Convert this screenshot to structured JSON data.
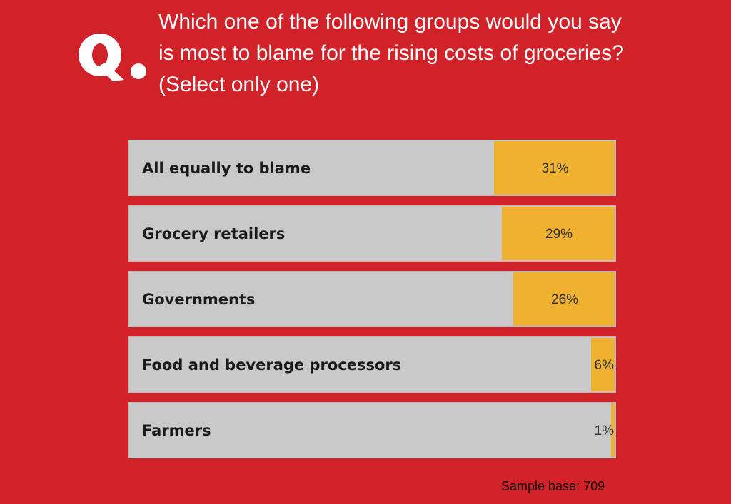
{
  "question": {
    "mark": "Q.",
    "line1": "Which one of the following groups would you say",
    "line2": "is most to blame for the rising costs of groceries?",
    "line3": "(Select only one)"
  },
  "colors": {
    "background": "#d1222a",
    "track": "#c9c9c9",
    "fill": "#f0b030",
    "question_text": "#ffffff"
  },
  "chart_data": {
    "type": "bar",
    "orientation": "horizontal",
    "categories": [
      "All equally to blame",
      "Grocery retailers",
      "Governments",
      "Food and beverage processors",
      "Farmers"
    ],
    "values": [
      31,
      29,
      26,
      6,
      1
    ],
    "value_labels": [
      "31%",
      "29%",
      "26%",
      "6%",
      "1%"
    ],
    "unit": "%",
    "title": "",
    "xlabel": "",
    "ylabel": "",
    "xlim": [
      0,
      125
    ],
    "grid": false,
    "legend": "none"
  },
  "footer": {
    "sample_base": "Sample base: 709"
  }
}
